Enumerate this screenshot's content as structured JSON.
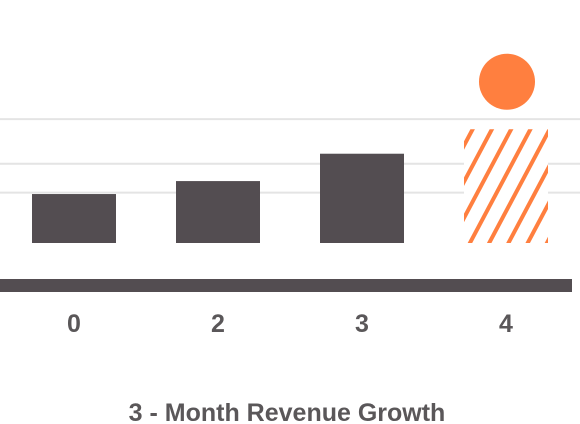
{
  "chart_data": {
    "type": "bar",
    "title": "3 - Month Revenue Growth",
    "xlabel": "",
    "ylabel": "",
    "categories": [
      "0",
      "2",
      "3",
      "4"
    ],
    "values": [
      3.4,
      4.3,
      6.2,
      7.9
    ],
    "projected": [
      false,
      false,
      false,
      true
    ],
    "marker": {
      "category": "4",
      "value": 11.2
    },
    "ylim": [
      0,
      12
    ],
    "grid": true,
    "gridlines": [
      3.5,
      5.5,
      8.6
    ],
    "legend": "none"
  },
  "colors": {
    "bar": "#534d51",
    "projected": "#ff7f3f",
    "marker": "#ff7f3f",
    "grid": "#e4e4e4",
    "axis": "#534d51",
    "text": "#5a5759"
  }
}
